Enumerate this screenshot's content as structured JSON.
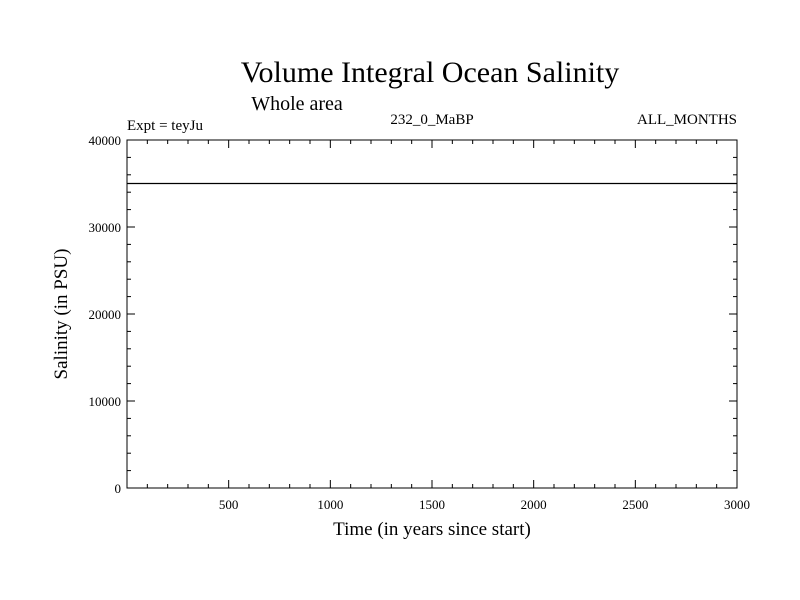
{
  "chart_data": {
    "type": "line",
    "title": "Volume Integral Ocean Salinity",
    "subtitle": "Whole area",
    "experiment_label": "Expt = teyJu",
    "center_label": "232_0_MaBP",
    "right_label": "ALL_MONTHS",
    "xlabel": "Time (in years since start)",
    "ylabel": "Salinity (in PSU)",
    "xlim": [
      0,
      3000
    ],
    "ylim": [
      0,
      40000
    ],
    "x_ticks": [
      500,
      1000,
      1500,
      2000,
      2500,
      3000
    ],
    "x_tick_labels": [
      "500",
      "1000",
      "1500",
      "2000",
      "2500",
      "3000"
    ],
    "y_ticks": [
      0,
      10000,
      20000,
      30000,
      40000
    ],
    "y_tick_labels": [
      "0",
      "10000",
      "20000",
      "30000",
      "40000"
    ],
    "x_minor_step": 100,
    "y_minor_step": 2000,
    "grid": false,
    "series": [
      {
        "name": "salinity",
        "color": "#000000",
        "x": [
          0,
          500,
          1000,
          1500,
          2000,
          2500,
          3000
        ],
        "values": [
          35000,
          35000,
          35000,
          35000,
          35000,
          35000,
          35000
        ]
      }
    ]
  }
}
